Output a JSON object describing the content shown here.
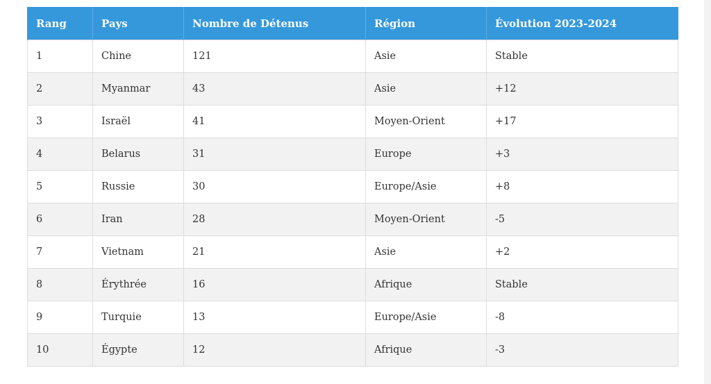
{
  "table": {
    "headers": [
      "Rang",
      "Pays",
      "Nombre de Détenus",
      "Région",
      "Évolution 2023-2024"
    ],
    "rows": [
      [
        "1",
        "Chine",
        "121",
        "Asie",
        "Stable"
      ],
      [
        "2",
        "Myanmar",
        "43",
        "Asie",
        "+12"
      ],
      [
        "3",
        "Israël",
        "41",
        "Moyen-Orient",
        "+17"
      ],
      [
        "4",
        "Belarus",
        "31",
        "Europe",
        "+3"
      ],
      [
        "5",
        "Russie",
        "30",
        "Europe/Asie",
        "+8"
      ],
      [
        "6",
        "Iran",
        "28",
        "Moyen-Orient",
        "-5"
      ],
      [
        "7",
        "Vietnam",
        "21",
        "Asie",
        "+2"
      ],
      [
        "8",
        "Érythrée",
        "16",
        "Afrique",
        "Stable"
      ],
      [
        "9",
        "Turquie",
        "13",
        "Europe/Asie",
        "-8"
      ],
      [
        "10",
        "Égypte",
        "12",
        "Afrique",
        "-3"
      ]
    ]
  },
  "colors": {
    "header_bg": "#3498db",
    "header_text": "#ffffff",
    "row_alt_bg": "#f2f2f2",
    "border": "#dddddd"
  }
}
